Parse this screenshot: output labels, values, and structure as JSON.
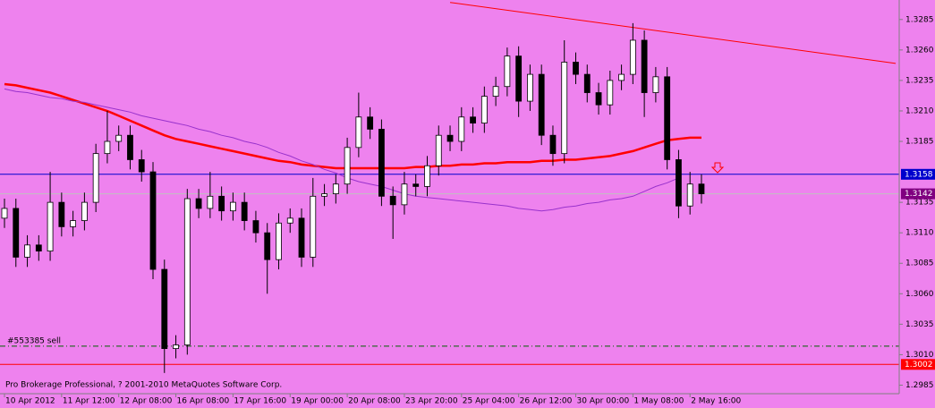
{
  "chart_data": {
    "type": "candlestick",
    "categories": [
      "10 Apr 2012",
      null,
      null,
      null,
      null,
      "11 Apr 12:00",
      null,
      null,
      null,
      null,
      "12 Apr 08:00",
      null,
      null,
      null,
      null,
      "16 Apr 08:00",
      null,
      null,
      null,
      null,
      "17 Apr 16:00",
      null,
      null,
      null,
      null,
      "19 Apr 00:00",
      null,
      null,
      null,
      null,
      "20 Apr 08:00",
      null,
      null,
      null,
      null,
      "23 Apr 20:00",
      null,
      null,
      null,
      null,
      "25 Apr 04:00",
      null,
      null,
      null,
      null,
      "26 Apr 12:00",
      null,
      null,
      null,
      null,
      "30 Apr 00:00",
      null,
      null,
      null,
      null,
      "1 May 08:00",
      null,
      null,
      null,
      null,
      "2 May 16:00",
      null
    ],
    "open": [
      1.3122,
      1.313,
      1.309,
      1.31,
      1.3095,
      1.3135,
      1.3115,
      1.312,
      1.3135,
      1.3175,
      1.3185,
      1.319,
      1.317,
      1.316,
      1.308,
      1.3015,
      1.3018,
      1.3138,
      1.313,
      1.314,
      1.3128,
      1.3135,
      1.312,
      1.311,
      1.3088,
      1.3118,
      1.3122,
      1.309,
      1.314,
      1.3142,
      1.315,
      1.318,
      1.3205,
      1.3195,
      1.314,
      1.3133,
      1.315,
      1.3148,
      1.3165,
      1.319,
      1.3185,
      1.3205,
      1.32,
      1.3222,
      1.323,
      1.3255,
      1.3218,
      1.324,
      1.319,
      1.3175,
      1.325,
      1.324,
      1.3225,
      1.3215,
      1.3235,
      1.324,
      1.3268,
      1.3225,
      1.3238,
      1.317,
      1.3132,
      1.315
    ],
    "high": [
      1.3138,
      1.3138,
      1.3108,
      1.3108,
      1.316,
      1.3143,
      1.3128,
      1.3143,
      1.3183,
      1.321,
      1.3198,
      1.3198,
      1.3178,
      1.3168,
      1.3088,
      1.3026,
      1.3146,
      1.3146,
      1.316,
      1.3148,
      1.3143,
      1.3143,
      1.3128,
      1.3118,
      1.3126,
      1.313,
      1.313,
      1.3155,
      1.315,
      1.3158,
      1.3188,
      1.3225,
      1.3213,
      1.3203,
      1.3148,
      1.316,
      1.3158,
      1.3173,
      1.3198,
      1.3198,
      1.3213,
      1.3213,
      1.323,
      1.3238,
      1.3262,
      1.3263,
      1.3248,
      1.3248,
      1.3198,
      1.3268,
      1.3258,
      1.3248,
      1.3233,
      1.3243,
      1.3248,
      1.3282,
      1.3276,
      1.3246,
      1.3246,
      1.3178,
      1.316,
      1.3158
    ],
    "low": [
      1.3114,
      1.3082,
      1.3082,
      1.3087,
      1.3087,
      1.3107,
      1.3107,
      1.3112,
      1.3127,
      1.3167,
      1.3177,
      1.3162,
      1.3152,
      1.3072,
      1.2995,
      1.3007,
      1.301,
      1.3122,
      1.3122,
      1.312,
      1.312,
      1.3112,
      1.3102,
      1.306,
      1.308,
      1.311,
      1.3082,
      1.3082,
      1.3132,
      1.3134,
      1.3142,
      1.3172,
      1.3187,
      1.3132,
      1.3105,
      1.3125,
      1.314,
      1.314,
      1.3157,
      1.3177,
      1.3177,
      1.3192,
      1.3192,
      1.3214,
      1.3222,
      1.3205,
      1.321,
      1.3182,
      1.3165,
      1.3167,
      1.3232,
      1.3217,
      1.3207,
      1.3207,
      1.3227,
      1.3232,
      1.3205,
      1.3217,
      1.3162,
      1.3122,
      1.3125,
      1.3134
    ],
    "close": [
      1.313,
      1.309,
      1.31,
      1.3095,
      1.3135,
      1.3115,
      1.312,
      1.3135,
      1.3175,
      1.3185,
      1.319,
      1.317,
      1.316,
      1.308,
      1.3015,
      1.3018,
      1.3138,
      1.313,
      1.314,
      1.3128,
      1.3135,
      1.312,
      1.311,
      1.3088,
      1.3118,
      1.3122,
      1.309,
      1.314,
      1.3142,
      1.315,
      1.318,
      1.3205,
      1.3195,
      1.314,
      1.3133,
      1.315,
      1.3148,
      1.3165,
      1.319,
      1.3185,
      1.3205,
      1.32,
      1.3222,
      1.323,
      1.3255,
      1.3218,
      1.324,
      1.319,
      1.3175,
      1.325,
      1.324,
      1.3225,
      1.3215,
      1.3235,
      1.324,
      1.3268,
      1.3225,
      1.3238,
      1.317,
      1.3132,
      1.315,
      1.3142
    ],
    "series": [
      {
        "color": "#ff0000",
        "values": [
          1.3232,
          1.3231,
          1.3229,
          1.3227,
          1.3225,
          1.3222,
          1.3219,
          1.3216,
          1.3213,
          1.321,
          1.3206,
          1.3202,
          1.3198,
          1.3194,
          1.319,
          1.3187,
          1.3185,
          1.3183,
          1.3181,
          1.3179,
          1.3177,
          1.3175,
          1.3173,
          1.3171,
          1.3169,
          1.3168,
          1.3166,
          1.3165,
          1.3164,
          1.3163,
          1.3163,
          1.3163,
          1.3163,
          1.3163,
          1.3163,
          1.3163,
          1.3164,
          1.3164,
          1.3165,
          1.3165,
          1.3166,
          1.3166,
          1.3167,
          1.3167,
          1.3168,
          1.3168,
          1.3168,
          1.3169,
          1.3169,
          1.317,
          1.317,
          1.3171,
          1.3172,
          1.3173,
          1.3175,
          1.3177,
          1.318,
          1.3183,
          1.3186,
          1.3187,
          1.3188,
          1.3188
        ]
      },
      {
        "color": "#9932cc",
        "values": [
          1.3228,
          1.3226,
          1.3225,
          1.3223,
          1.3221,
          1.322,
          1.3218,
          1.3217,
          1.3215,
          1.3213,
          1.3211,
          1.3209,
          1.3206,
          1.3204,
          1.3202,
          1.32,
          1.3198,
          1.3195,
          1.3193,
          1.319,
          1.3188,
          1.3185,
          1.3183,
          1.318,
          1.3176,
          1.3173,
          1.3169,
          1.3166,
          1.3162,
          1.3159,
          1.3155,
          1.3152,
          1.315,
          1.3148,
          1.3145,
          1.3142,
          1.314,
          1.3139,
          1.3138,
          1.3137,
          1.3136,
          1.3135,
          1.3134,
          1.3133,
          1.3132,
          1.313,
          1.3129,
          1.3128,
          1.3129,
          1.3131,
          1.3132,
          1.3134,
          1.3135,
          1.3137,
          1.3138,
          1.314,
          1.3144,
          1.3148,
          1.3151,
          1.3155,
          null,
          null
        ]
      }
    ],
    "levels": [
      {
        "value": 1.3158,
        "color": "#0000cd"
      },
      {
        "value": 1.3142,
        "color": "#c0c0c0"
      },
      {
        "value": 1.3002,
        "color": "#ff0000"
      }
    ],
    "order_line": {
      "value": 1.3017,
      "label": "#553385 sell",
      "color": "#006400"
    },
    "trendline": {
      "start": [
        39,
        1.3299
      ],
      "end": [
        78,
        1.3249
      ],
      "color": "#ff0000"
    },
    "ylim": [
      1.2978,
      1.3301
    ],
    "yticks": [
      1.3285,
      {
        "value": 1.326,
        "label": "1.3260"
      },
      1.3235,
      {
        "value": 1.321,
        "label": "1.3210"
      },
      1.3185,
      1.3135,
      {
        "value": 1.311,
        "label": "1.3110"
      },
      1.3085,
      {
        "value": 1.306,
        "label": "1.3060"
      },
      1.3035,
      {
        "value": 1.301,
        "label": "1.3010"
      },
      1.2985
    ],
    "footer": "Pro Brokerage Professional, ? 2001-2010 MetaQuotes Software Corp."
  }
}
